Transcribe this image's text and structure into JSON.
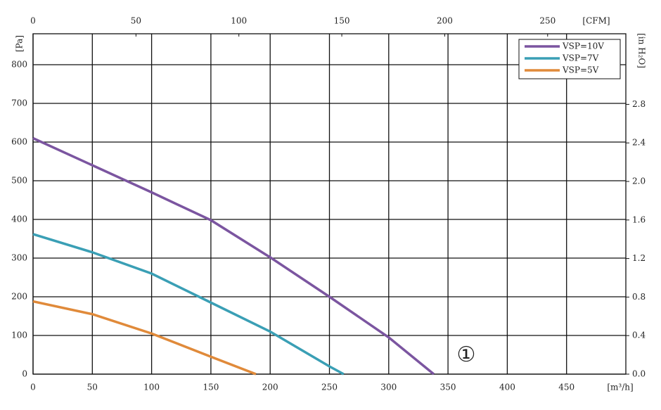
{
  "chart_data": {
    "type": "line",
    "xlabel": "[m³/h]",
    "ylabel": "[Pa]",
    "x2label": "[CFM]",
    "y2label": "[in H₂O]",
    "annotation": "①",
    "xlim": [
      0,
      500
    ],
    "xticks": [
      0,
      50,
      100,
      150,
      200,
      250,
      300,
      350,
      400,
      450
    ],
    "ylim": [
      0,
      880
    ],
    "yticks": [
      0,
      100,
      200,
      300,
      400,
      500,
      600,
      700,
      800
    ],
    "x2lim": [
      0,
      288
    ],
    "x2ticks": [
      0,
      50,
      100,
      150,
      200,
      250
    ],
    "y2lim": [
      0,
      3.533
    ],
    "y2ticks": [
      {
        "value": 0,
        "label": "0.0"
      },
      0.4,
      0.8,
      1.2,
      1.6,
      {
        "value": 2,
        "label": "2.0"
      },
      2.4,
      2.8
    ],
    "grid": true,
    "legend": "top-right",
    "series": [
      {
        "name": "VSP=10V",
        "color": "#7b55a0",
        "x": [
          0,
          50,
          100,
          150,
          200,
          250,
          300,
          338
        ],
        "values": [
          610,
          540,
          470,
          398,
          302,
          200,
          95,
          0
        ]
      },
      {
        "name": "VSP=7V",
        "color": "#3a9fb5",
        "x": [
          0,
          50,
          100,
          150,
          200,
          250,
          262
        ],
        "values": [
          362,
          315,
          260,
          185,
          110,
          20,
          0
        ]
      },
      {
        "name": "VSP=5V",
        "color": "#e08a3a",
        "x": [
          0,
          50,
          100,
          150,
          188
        ],
        "values": [
          188,
          155,
          105,
          45,
          0
        ]
      }
    ]
  }
}
